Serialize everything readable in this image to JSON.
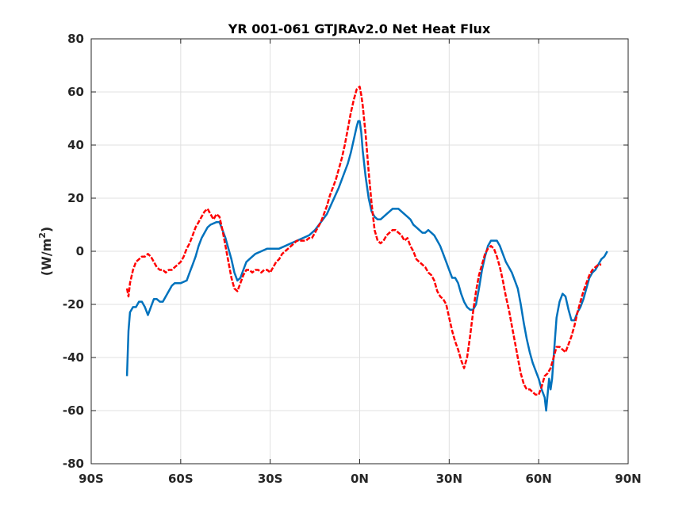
{
  "chart_data": {
    "type": "line",
    "title": "YR 001-061 GTJRAv2.0    Net Heat Flux",
    "xlabel": "",
    "ylabel": "(W/m",
    "ylabel_sup": "2",
    "ylabel_close": ")",
    "xlim": [
      -90,
      90
    ],
    "ylim": [
      -80,
      80
    ],
    "grid": true,
    "x_ticks": [
      {
        "v": -90,
        "label": "90S"
      },
      {
        "v": -60,
        "label": "60S"
      },
      {
        "v": -30,
        "label": "30S"
      },
      {
        "v": 0,
        "label": "0N"
      },
      {
        "v": 30,
        "label": "30N"
      },
      {
        "v": 60,
        "label": "60N"
      },
      {
        "v": 90,
        "label": "90N"
      }
    ],
    "y_ticks": [
      {
        "v": -80,
        "label": "-80"
      },
      {
        "v": -60,
        "label": "-60"
      },
      {
        "v": -40,
        "label": "-40"
      },
      {
        "v": -20,
        "label": "-20"
      },
      {
        "v": 0,
        "label": "0"
      },
      {
        "v": 20,
        "label": "20"
      },
      {
        "v": 40,
        "label": "40"
      },
      {
        "v": 60,
        "label": "60"
      },
      {
        "v": 80,
        "label": "80"
      }
    ],
    "series": [
      {
        "color": "#0072bd",
        "style": "solid",
        "points": [
          [
            -78,
            -47
          ],
          [
            -77.5,
            -30
          ],
          [
            -77,
            -23
          ],
          [
            -76,
            -21
          ],
          [
            -75,
            -21
          ],
          [
            -74,
            -19
          ],
          [
            -73,
            -19
          ],
          [
            -72,
            -21
          ],
          [
            -71,
            -24
          ],
          [
            -70,
            -21
          ],
          [
            -69,
            -18
          ],
          [
            -68,
            -18
          ],
          [
            -67,
            -19
          ],
          [
            -66,
            -19
          ],
          [
            -65,
            -17
          ],
          [
            -64,
            -15
          ],
          [
            -63,
            -13
          ],
          [
            -62,
            -12
          ],
          [
            -60,
            -12
          ],
          [
            -58,
            -11
          ],
          [
            -57,
            -8
          ],
          [
            -56,
            -5
          ],
          [
            -55,
            -2
          ],
          [
            -54,
            2
          ],
          [
            -53,
            5
          ],
          [
            -52,
            7
          ],
          [
            -51,
            9
          ],
          [
            -50,
            10
          ],
          [
            -48,
            11
          ],
          [
            -47,
            11
          ],
          [
            -46,
            8
          ],
          [
            -45,
            5
          ],
          [
            -44,
            1
          ],
          [
            -43,
            -3
          ],
          [
            -42,
            -8
          ],
          [
            -41,
            -11
          ],
          [
            -40,
            -10
          ],
          [
            -39,
            -7
          ],
          [
            -38,
            -4
          ],
          [
            -37,
            -3
          ],
          [
            -36,
            -2
          ],
          [
            -35,
            -1
          ],
          [
            -33,
            0
          ],
          [
            -31,
            1
          ],
          [
            -29,
            1
          ],
          [
            -27,
            1
          ],
          [
            -25,
            2
          ],
          [
            -23,
            3
          ],
          [
            -21,
            4
          ],
          [
            -19,
            5
          ],
          [
            -17,
            6
          ],
          [
            -15,
            8
          ],
          [
            -13,
            11
          ],
          [
            -11,
            14
          ],
          [
            -9,
            19
          ],
          [
            -7,
            24
          ],
          [
            -5,
            30
          ],
          [
            -4,
            33
          ],
          [
            -3,
            37
          ],
          [
            -2,
            42
          ],
          [
            -1,
            47
          ],
          [
            -0.5,
            49
          ],
          [
            0,
            49
          ],
          [
            0.5,
            45
          ],
          [
            1,
            38
          ],
          [
            2,
            28
          ],
          [
            3,
            20
          ],
          [
            4,
            15
          ],
          [
            5,
            13
          ],
          [
            6,
            12
          ],
          [
            7,
            12
          ],
          [
            8,
            13
          ],
          [
            9,
            14
          ],
          [
            10,
            15
          ],
          [
            11,
            16
          ],
          [
            12,
            16
          ],
          [
            13,
            16
          ],
          [
            14,
            15
          ],
          [
            15,
            14
          ],
          [
            16,
            13
          ],
          [
            17,
            12
          ],
          [
            18,
            10
          ],
          [
            19,
            9
          ],
          [
            20,
            8
          ],
          [
            21,
            7
          ],
          [
            22,
            7
          ],
          [
            23,
            8
          ],
          [
            24,
            7
          ],
          [
            25,
            6
          ],
          [
            26,
            4
          ],
          [
            27,
            2
          ],
          [
            28,
            -1
          ],
          [
            29,
            -4
          ],
          [
            30,
            -7
          ],
          [
            31,
            -10
          ],
          [
            32,
            -10
          ],
          [
            33,
            -12
          ],
          [
            34,
            -16
          ],
          [
            35,
            -19
          ],
          [
            36,
            -21
          ],
          [
            37,
            -22
          ],
          [
            38,
            -22
          ],
          [
            39,
            -20
          ],
          [
            40,
            -14
          ],
          [
            41,
            -7
          ],
          [
            42,
            -2
          ],
          [
            43,
            2
          ],
          [
            44,
            4
          ],
          [
            45,
            4
          ],
          [
            46,
            4
          ],
          [
            47,
            2
          ],
          [
            48,
            -1
          ],
          [
            49,
            -4
          ],
          [
            50,
            -6
          ],
          [
            51,
            -8
          ],
          [
            52,
            -11
          ],
          [
            53,
            -14
          ],
          [
            54,
            -20
          ],
          [
            55,
            -27
          ],
          [
            56,
            -33
          ],
          [
            57,
            -38
          ],
          [
            58,
            -42
          ],
          [
            59,
            -45
          ],
          [
            60,
            -48
          ],
          [
            61,
            -52
          ],
          [
            62,
            -55
          ],
          [
            62.5,
            -60
          ],
          [
            63,
            -54
          ],
          [
            63.5,
            -48
          ],
          [
            64,
            -52
          ],
          [
            64.5,
            -48
          ],
          [
            65,
            -40
          ],
          [
            66,
            -25
          ],
          [
            67,
            -19
          ],
          [
            68,
            -16
          ],
          [
            69,
            -17
          ],
          [
            70,
            -22
          ],
          [
            71,
            -26
          ],
          [
            72,
            -26
          ],
          [
            73,
            -23
          ],
          [
            74,
            -21
          ],
          [
            75,
            -18
          ],
          [
            76,
            -14
          ],
          [
            77,
            -10
          ],
          [
            78,
            -8
          ],
          [
            79,
            -7
          ],
          [
            80,
            -5
          ],
          [
            81,
            -3
          ],
          [
            82,
            -2
          ],
          [
            83,
            0
          ]
        ]
      },
      {
        "color": "#ff0000",
        "style": "dashed",
        "points": [
          [
            -78,
            -14
          ],
          [
            -77.5,
            -17
          ],
          [
            -77,
            -12
          ],
          [
            -76,
            -7
          ],
          [
            -75,
            -4
          ],
          [
            -74,
            -3
          ],
          [
            -73,
            -2
          ],
          [
            -72,
            -2
          ],
          [
            -71,
            -1
          ],
          [
            -70,
            -2
          ],
          [
            -69,
            -4
          ],
          [
            -68,
            -6
          ],
          [
            -67,
            -7
          ],
          [
            -66,
            -7
          ],
          [
            -65,
            -8
          ],
          [
            -64,
            -7
          ],
          [
            -63,
            -7
          ],
          [
            -62,
            -6
          ],
          [
            -61,
            -5
          ],
          [
            -60,
            -4
          ],
          [
            -59,
            -2
          ],
          [
            -58,
            1
          ],
          [
            -57,
            3
          ],
          [
            -56,
            6
          ],
          [
            -55,
            9
          ],
          [
            -54,
            11
          ],
          [
            -53,
            13
          ],
          [
            -52,
            15
          ],
          [
            -51,
            16
          ],
          [
            -50,
            14
          ],
          [
            -49,
            12
          ],
          [
            -48,
            14
          ],
          [
            -47,
            13
          ],
          [
            -46,
            8
          ],
          [
            -45,
            2
          ],
          [
            -44,
            -4
          ],
          [
            -43,
            -10
          ],
          [
            -42,
            -14
          ],
          [
            -41,
            -15
          ],
          [
            -40,
            -12
          ],
          [
            -39,
            -9
          ],
          [
            -38,
            -7
          ],
          [
            -37,
            -7
          ],
          [
            -36,
            -8
          ],
          [
            -35,
            -7
          ],
          [
            -34,
            -7
          ],
          [
            -33,
            -8
          ],
          [
            -32,
            -7
          ],
          [
            -31,
            -7
          ],
          [
            -30,
            -8
          ],
          [
            -29,
            -6
          ],
          [
            -28,
            -4
          ],
          [
            -27,
            -3
          ],
          [
            -26,
            -1
          ],
          [
            -25,
            0
          ],
          [
            -24,
            1
          ],
          [
            -23,
            2
          ],
          [
            -22,
            3
          ],
          [
            -21,
            4
          ],
          [
            -20,
            4
          ],
          [
            -19,
            4
          ],
          [
            -18,
            4
          ],
          [
            -17,
            5
          ],
          [
            -16,
            5
          ],
          [
            -15,
            7
          ],
          [
            -14,
            9
          ],
          [
            -13,
            11
          ],
          [
            -12,
            14
          ],
          [
            -11,
            17
          ],
          [
            -10,
            21
          ],
          [
            -9,
            24
          ],
          [
            -8,
            27
          ],
          [
            -7,
            31
          ],
          [
            -6,
            35
          ],
          [
            -5,
            40
          ],
          [
            -4,
            46
          ],
          [
            -3,
            52
          ],
          [
            -2,
            57
          ],
          [
            -1,
            61
          ],
          [
            0,
            62
          ],
          [
            0.5,
            59
          ],
          [
            1,
            55
          ],
          [
            2,
            44
          ],
          [
            3,
            30
          ],
          [
            4,
            18
          ],
          [
            5,
            8
          ],
          [
            6,
            4
          ],
          [
            7,
            3
          ],
          [
            8,
            4
          ],
          [
            9,
            6
          ],
          [
            10,
            7
          ],
          [
            11,
            8
          ],
          [
            12,
            8
          ],
          [
            13,
            7
          ],
          [
            14,
            6
          ],
          [
            15,
            4
          ],
          [
            16,
            5
          ],
          [
            17,
            2
          ],
          [
            18,
            0
          ],
          [
            19,
            -3
          ],
          [
            20,
            -4
          ],
          [
            21,
            -5
          ],
          [
            22,
            -6
          ],
          [
            23,
            -8
          ],
          [
            24,
            -9
          ],
          [
            25,
            -11
          ],
          [
            26,
            -15
          ],
          [
            27,
            -17
          ],
          [
            28,
            -18
          ],
          [
            29,
            -20
          ],
          [
            30,
            -25
          ],
          [
            31,
            -30
          ],
          [
            32,
            -34
          ],
          [
            33,
            -37
          ],
          [
            34,
            -41
          ],
          [
            35,
            -44
          ],
          [
            36,
            -40
          ],
          [
            37,
            -32
          ],
          [
            38,
            -23
          ],
          [
            39,
            -15
          ],
          [
            40,
            -9
          ],
          [
            41,
            -5
          ],
          [
            42,
            -1
          ],
          [
            43,
            1
          ],
          [
            44,
            2
          ],
          [
            45,
            1
          ],
          [
            46,
            -2
          ],
          [
            47,
            -6
          ],
          [
            48,
            -11
          ],
          [
            49,
            -17
          ],
          [
            50,
            -22
          ],
          [
            51,
            -28
          ],
          [
            52,
            -34
          ],
          [
            53,
            -40
          ],
          [
            54,
            -46
          ],
          [
            55,
            -50
          ],
          [
            56,
            -52
          ],
          [
            57,
            -52
          ],
          [
            58,
            -53
          ],
          [
            59,
            -54
          ],
          [
            60,
            -54
          ],
          [
            61,
            -51
          ],
          [
            62,
            -47
          ],
          [
            63,
            -46
          ],
          [
            64,
            -44
          ],
          [
            65,
            -40
          ],
          [
            66,
            -36
          ],
          [
            67,
            -36
          ],
          [
            68,
            -37
          ],
          [
            69,
            -38
          ],
          [
            70,
            -35
          ],
          [
            71,
            -32
          ],
          [
            72,
            -28
          ],
          [
            73,
            -23
          ],
          [
            74,
            -19
          ],
          [
            75,
            -15
          ],
          [
            76,
            -12
          ],
          [
            77,
            -9
          ],
          [
            78,
            -7
          ],
          [
            79,
            -6
          ],
          [
            80,
            -5
          ],
          [
            81,
            -5
          ]
        ]
      }
    ]
  }
}
